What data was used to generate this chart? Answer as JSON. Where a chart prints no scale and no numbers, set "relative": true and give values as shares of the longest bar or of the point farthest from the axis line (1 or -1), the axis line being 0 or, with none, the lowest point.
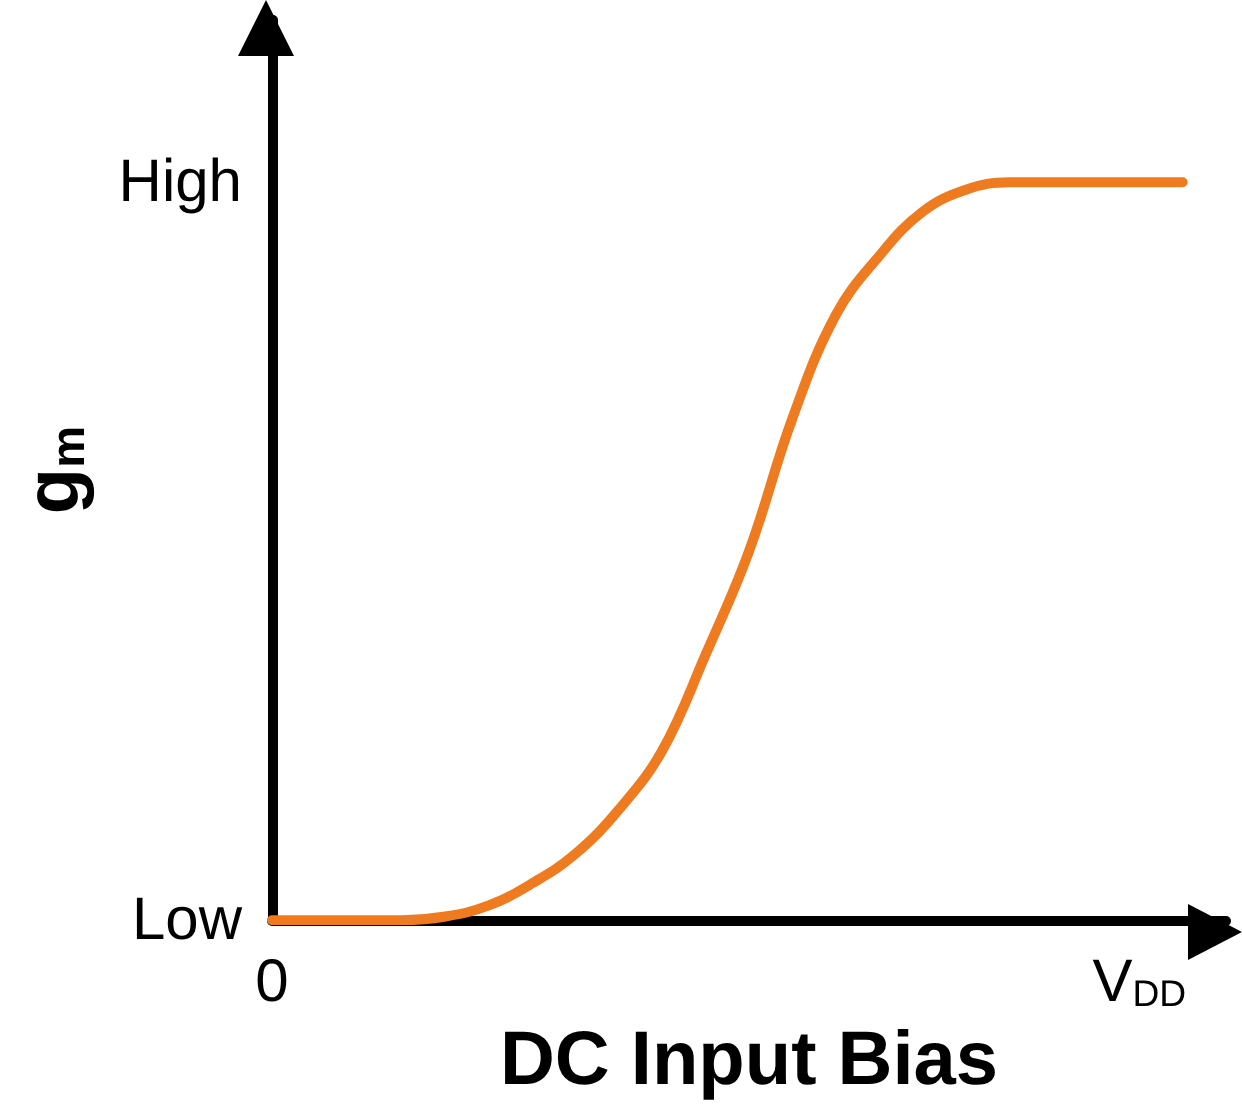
{
  "chart_data": {
    "type": "line",
    "xlabel": "DC Input Bias",
    "ylabel": "g$_{m}$",
    "relative": true,
    "categories": [
      "0",
      null,
      null,
      null,
      null,
      null,
      null,
      null,
      null,
      null,
      null,
      null,
      null,
      null,
      null,
      null,
      null,
      null,
      null,
      null,
      "V$_{DD}$",
      null,
      null
    ],
    "series": [
      {
        "color": "#ee7b1f",
        "values": [
          0,
          0,
          0,
          0,
          0.005,
          0.02,
          0.05,
          0.09,
          0.15,
          0.23,
          0.36,
          0.5,
          0.68,
          0.82,
          0.9,
          0.96,
          0.99,
          1,
          1,
          1,
          1,
          1,
          null
        ]
      }
    ],
    "annotations": [
      "Low",
      "High"
    ],
    "grid": false,
    "marker": "none",
    "line_style": "solid"
  }
}
